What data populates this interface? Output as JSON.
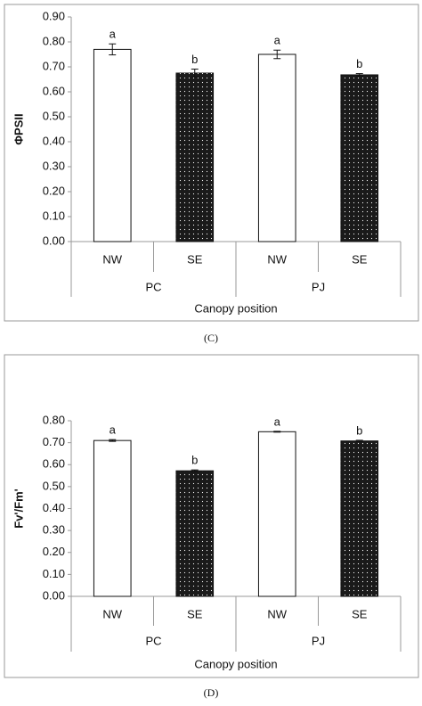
{
  "chart_data": [
    {
      "type": "bar",
      "caption": "(C)",
      "ylabel": "ΦPSII",
      "xlabel": "Canopy position",
      "categories": [
        "NW",
        "SE",
        "NW",
        "SE"
      ],
      "groups": [
        "PC",
        "PJ"
      ],
      "values": [
        0.77,
        0.675,
        0.75,
        0.668
      ],
      "errors": [
        0.022,
        0.016,
        0.017,
        0.005
      ],
      "letters": [
        "a",
        "b",
        "a",
        "b"
      ],
      "colors": [
        "#ffffff",
        "#1a1a1a",
        "#ffffff",
        "#1a1a1a"
      ],
      "ylim": [
        0,
        0.9
      ],
      "grid": false,
      "yticks": [
        {
          "value": 0,
          "label": "0.00"
        },
        {
          "value": 0.1,
          "label": "0.10"
        },
        {
          "value": 0.2,
          "label": "0.20"
        },
        {
          "value": 0.3,
          "label": "0.30"
        },
        {
          "value": 0.4,
          "label": "0.40"
        },
        {
          "value": 0.5,
          "label": "0.50"
        },
        {
          "value": 0.6,
          "label": "0.60"
        },
        {
          "value": 0.7,
          "label": "0.70"
        },
        {
          "value": 0.8,
          "label": "0.80"
        },
        {
          "value": 0.9,
          "label": "0.90"
        }
      ]
    },
    {
      "type": "bar",
      "caption": "(D)",
      "ylabel": "Fv'/Fm'",
      "xlabel": "Canopy position",
      "categories": [
        "NW",
        "SE",
        "NW",
        "SE"
      ],
      "groups": [
        "PC",
        "PJ"
      ],
      "values": [
        0.71,
        0.572,
        0.75,
        0.708
      ],
      "errors": [
        0.004,
        0.004,
        0.002,
        0.003
      ],
      "letters": [
        "a",
        "b",
        "a",
        "b"
      ],
      "colors": [
        "#ffffff",
        "#1a1a1a",
        "#ffffff",
        "#1a1a1a"
      ],
      "ylim": [
        0,
        0.8
      ],
      "grid": false,
      "yticks": [
        {
          "value": 0,
          "label": "0.00"
        },
        {
          "value": 0.1,
          "label": "0.10"
        },
        {
          "value": 0.2,
          "label": "0.20"
        },
        {
          "value": 0.3,
          "label": "0.30"
        },
        {
          "value": 0.4,
          "label": "0.40"
        },
        {
          "value": 0.5,
          "label": "0.50"
        },
        {
          "value": 0.6,
          "label": "0.60"
        },
        {
          "value": 0.7,
          "label": "0.70"
        },
        {
          "value": 0.8,
          "label": "0.80"
        }
      ]
    }
  ]
}
